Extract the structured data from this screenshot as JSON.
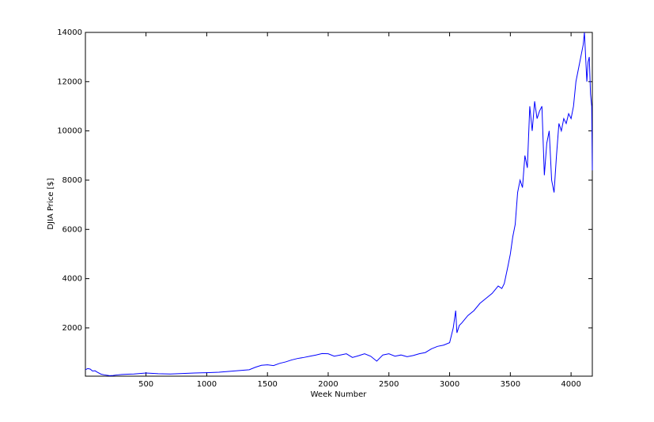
{
  "chart_data": {
    "type": "line",
    "xlabel": "Week Number",
    "ylabel": "DJIA Price  [$]",
    "x": [
      1,
      20,
      40,
      60,
      80,
      100,
      130,
      160,
      200,
      230,
      260,
      300,
      350,
      400,
      450,
      500,
      600,
      700,
      800,
      900,
      1000,
      1100,
      1200,
      1300,
      1350,
      1400,
      1450,
      1500,
      1550,
      1600,
      1650,
      1700,
      1750,
      1800,
      1850,
      1900,
      1950,
      2000,
      2050,
      2100,
      2150,
      2200,
      2250,
      2300,
      2350,
      2400,
      2450,
      2500,
      2550,
      2600,
      2650,
      2700,
      2750,
      2800,
      2850,
      2900,
      2950,
      3000,
      3030,
      3050,
      3060,
      3080,
      3100,
      3150,
      3200,
      3250,
      3300,
      3350,
      3400,
      3430,
      3450,
      3480,
      3500,
      3520,
      3540,
      3560,
      3580,
      3600,
      3620,
      3640,
      3660,
      3680,
      3700,
      3720,
      3740,
      3760,
      3780,
      3800,
      3820,
      3840,
      3860,
      3880,
      3900,
      3920,
      3940,
      3960,
      3980,
      4000,
      4020,
      4040,
      4060,
      4080,
      4100,
      4110,
      4120,
      4130,
      4140,
      4150,
      4160,
      4170,
      4175
    ],
    "series": [
      {
        "color": "#0000ff",
        "values": [
          300,
          350,
          330,
          250,
          260,
          200,
          120,
          90,
          60,
          70,
          90,
          110,
          120,
          130,
          150,
          170,
          140,
          130,
          150,
          170,
          180,
          200,
          240,
          280,
          300,
          400,
          480,
          500,
          470,
          560,
          620,
          700,
          760,
          800,
          850,
          900,
          960,
          950,
          850,
          900,
          950,
          800,
          870,
          950,
          850,
          650,
          900,
          950,
          850,
          900,
          830,
          880,
          950,
          1000,
          1150,
          1250,
          1300,
          1400,
          2000,
          2700,
          1800,
          2100,
          2200,
          2500,
          2700,
          3000,
          3200,
          3400,
          3700,
          3600,
          3800,
          4500,
          5000,
          5700,
          6200,
          7500,
          8000,
          7700,
          9000,
          8500,
          11000,
          10000,
          11200,
          10500,
          10800,
          11000,
          8200,
          9500,
          10000,
          8000,
          7500,
          9000,
          10300,
          10000,
          10500,
          10300,
          10700,
          10500,
          11000,
          12000,
          12500,
          13000,
          13500,
          14000,
          13000,
          12000,
          12800,
          13000,
          11500,
          11000,
          8400
        ]
      }
    ],
    "xlim": [
      1,
      4175
    ],
    "ylim": [
      40,
      14000
    ],
    "xticks": [
      500,
      1000,
      1500,
      2000,
      2500,
      3000,
      3500,
      4000
    ],
    "yticks": [
      2000,
      4000,
      6000,
      8000,
      10000,
      12000,
      14000
    ]
  }
}
